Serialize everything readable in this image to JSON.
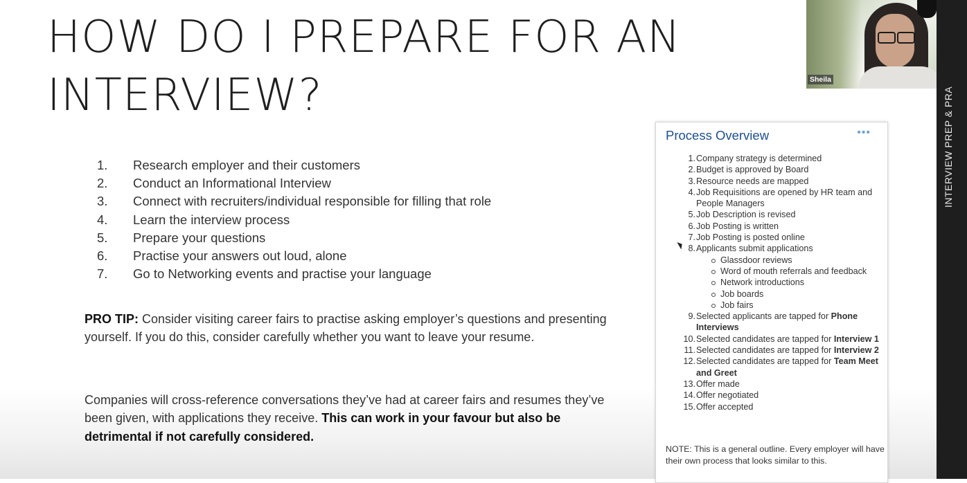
{
  "slide": {
    "title_lines": [
      "HOW DO I PREPARE FOR AN",
      "INTERVIEW?"
    ],
    "steps": [
      {
        "num": "1.",
        "text": "Research employer and their customers"
      },
      {
        "num": "2.",
        "text": "Conduct an Informational Interview"
      },
      {
        "num": "3.",
        "text": "Connect with recruiters/individual responsible for filling that role"
      },
      {
        "num": "4.",
        "text": "Learn the interview process"
      },
      {
        "num": "5.",
        "text": "Prepare your questions"
      },
      {
        "num": "6.",
        "text": "Practise your answers out loud, alone"
      },
      {
        "num": "7.",
        "text": "Go to Networking events and practise your language"
      }
    ],
    "pro_tip": {
      "label": "PRO TIP:",
      "text": " Consider visiting career fairs to practise asking employer’s questions and presenting yourself. If you do this, consider carefully whether you want to leave your resume."
    },
    "companies": {
      "text": "Companies will cross-reference conversations they’ve had at career fairs and resumes they’ve been given, with applications they receive. ",
      "bold": "This can work in your favour but also be detrimental if not carefully considered."
    }
  },
  "process": {
    "title": "Process Overview",
    "more_symbol": "•••",
    "items": [
      {
        "num": "1.",
        "text": "Company strategy is determined",
        "bold": ""
      },
      {
        "num": "2.",
        "text": "Budget is approved by Board",
        "bold": ""
      },
      {
        "num": "3.",
        "text": "Resource needs are mapped",
        "bold": ""
      },
      {
        "num": "4.",
        "text": "Job Requisitions are opened by HR team and People Managers",
        "bold": ""
      },
      {
        "num": "5.",
        "text": "Job Description is revised",
        "bold": ""
      },
      {
        "num": "6.",
        "text": "Job Posting is written",
        "bold": ""
      },
      {
        "num": "7.",
        "text": "Job Posting is posted online",
        "bold": ""
      },
      {
        "num": "8.",
        "text": "Applicants submit applications",
        "bold": ""
      },
      {
        "num": "9.",
        "text": "Selected applicants are tapped for ",
        "bold": "Phone Interviews"
      },
      {
        "num": "10.",
        "text": "Selected candidates are tapped for ",
        "bold": "Interview 1"
      },
      {
        "num": "11.",
        "text": "Selected candidates are tapped for ",
        "bold": "Interview 2"
      },
      {
        "num": "12.",
        "text": "Selected candidates are tapped for ",
        "bold": "Team Meet and Greet"
      },
      {
        "num": "13.",
        "text": "Offer made",
        "bold": ""
      },
      {
        "num": "14.",
        "text": "Offer negotiated",
        "bold": ""
      },
      {
        "num": "15.",
        "text": "Offer accepted",
        "bold": ""
      }
    ],
    "sub_items": [
      "Glassdoor reviews",
      "Word of mouth referrals and feedback",
      "Network introductions",
      "Job boards",
      "Job fairs"
    ],
    "note": "NOTE: This is a general outline. Every employer will have their own process that looks similar to this."
  },
  "side_label": "INTERVIEW PREP & PRA",
  "camera": {
    "name": "Sheila"
  }
}
